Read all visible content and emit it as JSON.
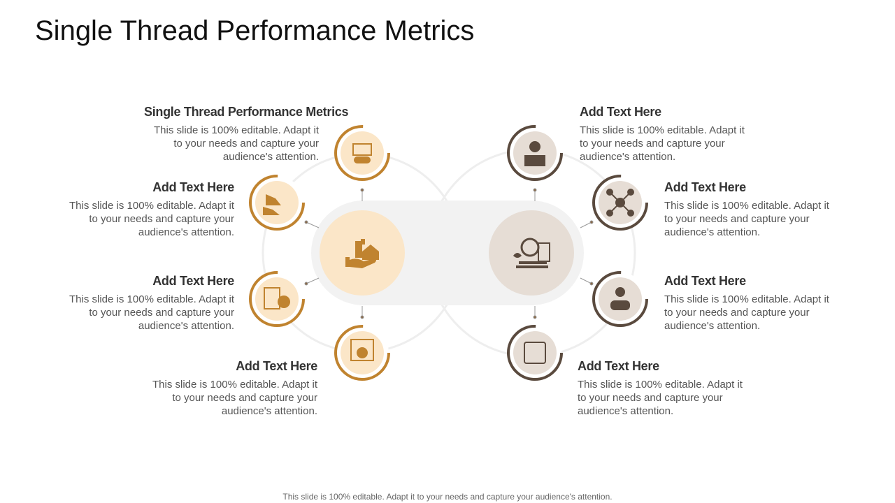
{
  "header": {
    "title": "Single Thread Performance Metrics"
  },
  "items": [
    {
      "heading": "Single Thread Performance Metrics",
      "body": "This slide is 100% editable. Adapt it to your needs and capture your audience's attention."
    },
    {
      "heading": "Add Text Here",
      "body": "This slide is 100% editable. Adapt it to your needs and capture your audience's attention."
    },
    {
      "heading": "Add Text Here",
      "body": "This slide is 100% editable. Adapt it to your needs and capture your audience's attention."
    },
    {
      "heading": "Add Text Here",
      "body": "This slide is 100% editable. Adapt it to your needs and capture your audience's attention."
    },
    {
      "heading": "Add Text Here",
      "body": "This slide is 100% editable. Adapt it to your needs and capture your audience's attention."
    },
    {
      "heading": "Add Text Here",
      "body": "This slide is 100% editable. Adapt it to your needs and capture your audience's attention."
    },
    {
      "heading": "Add Text Here",
      "body": "This slide is 100% editable. Adapt it to your needs and capture your audience's attention."
    },
    {
      "heading": "Add Text Here",
      "body": "This slide is 100% editable. Adapt it to your needs and capture your audience's attention."
    }
  ],
  "footer": "This slide is 100% editable. Adapt it to your needs and capture your audience's attention."
}
